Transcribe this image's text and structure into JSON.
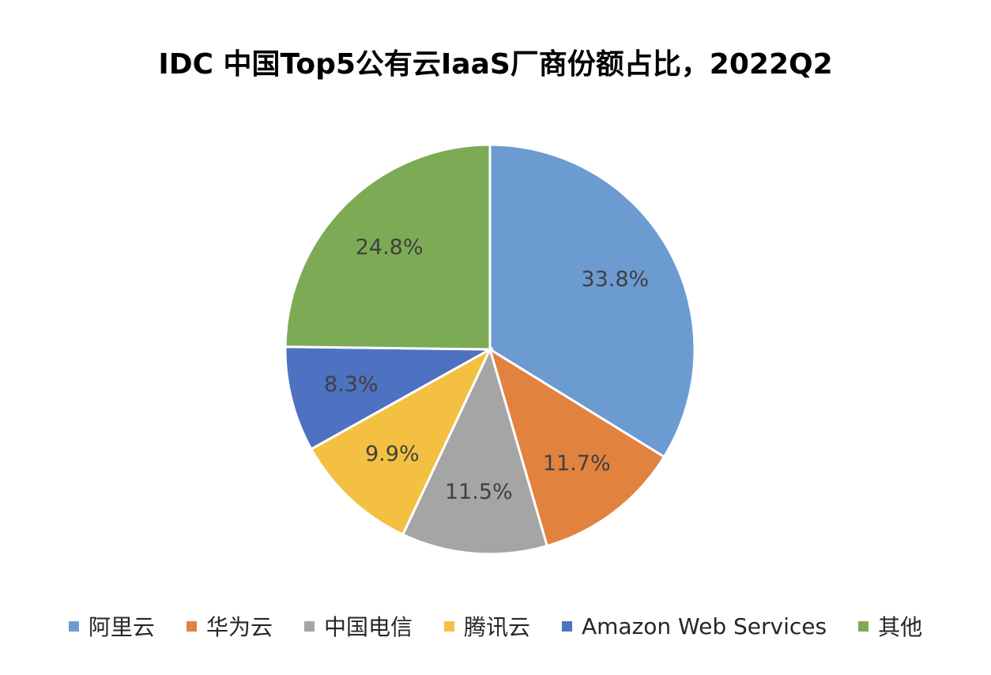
{
  "chart_data": {
    "type": "pie",
    "title": "IDC 中国Top5公有云IaaS厂商份额占比，2022Q2",
    "legend_position": "bottom",
    "slices": [
      {
        "name": "阿里云",
        "value": 33.8,
        "label": "33.8%",
        "color": "#6C9BD1"
      },
      {
        "name": "华为云",
        "value": 11.7,
        "label": "11.7%",
        "color": "#E1823F"
      },
      {
        "name": "中国电信",
        "value": 11.5,
        "label": "11.5%",
        "color": "#A5A5A5"
      },
      {
        "name": "腾讯云",
        "value": 9.9,
        "label": "9.9%",
        "color": "#F3C042"
      },
      {
        "name": "Amazon Web Services",
        "value": 8.3,
        "label": "8.3%",
        "color": "#4F71C1"
      },
      {
        "name": "其他",
        "value": 24.8,
        "label": "24.8%",
        "color": "#7DAB55"
      }
    ]
  }
}
